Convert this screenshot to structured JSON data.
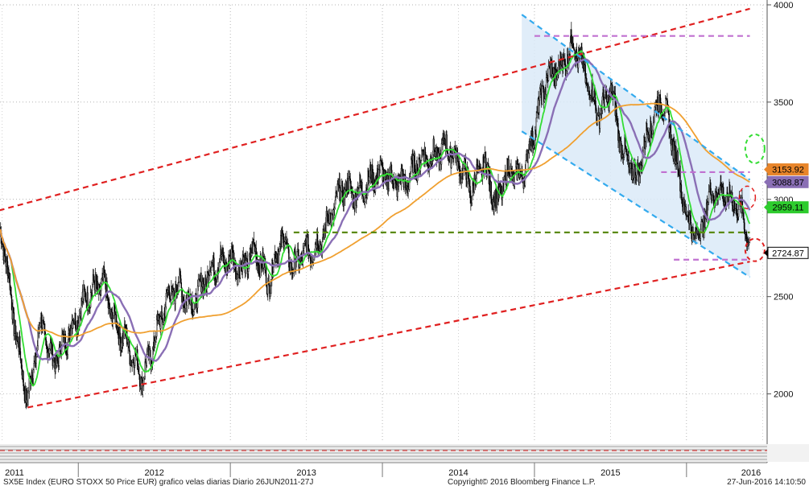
{
  "chart_data": {
    "type": "candlestick",
    "title": "SX5E Index (EURO STOXX 50 Price EUR) grafico velas diarias  Diario 26JUN2011-27J",
    "x_labels": [
      "2011",
      "2012",
      "2013",
      "2014",
      "2015",
      "2016"
    ],
    "y_ticks": [
      2000,
      2500,
      3000,
      3500,
      4000
    ],
    "ylim": [
      1750,
      4000
    ],
    "price_labels": [
      {
        "text": "3153.92",
        "value": 3153.92,
        "color": "#e8852a"
      },
      {
        "text": "3088.87",
        "value": 3088.87,
        "color": "#8a6fb5"
      },
      {
        "text": "2959.11",
        "value": 2959.11,
        "color": "#2ecc2e"
      },
      {
        "text": "2724.87",
        "value": 2724.87,
        "color": "#000000"
      }
    ],
    "price_path": [
      [
        "2011-06",
        2850
      ],
      [
        "2011-07",
        2780
      ],
      [
        "2011-08",
        2350
      ],
      [
        "2011-09",
        2000
      ],
      [
        "2011-10",
        2330
      ],
      [
        "2011-11",
        2150
      ],
      [
        "2011-12",
        2320
      ],
      [
        "2012-01",
        2400
      ],
      [
        "2012-02",
        2500
      ],
      [
        "2012-03",
        2600
      ],
      [
        "2012-04",
        2350
      ],
      [
        "2012-05",
        2200
      ],
      [
        "2012-06",
        2100
      ],
      [
        "2012-07",
        2300
      ],
      [
        "2012-08",
        2450
      ],
      [
        "2012-09",
        2550
      ],
      [
        "2012-10",
        2500
      ],
      [
        "2012-11",
        2560
      ],
      [
        "2012-12",
        2650
      ],
      [
        "2013-01",
        2730
      ],
      [
        "2013-02",
        2640
      ],
      [
        "2013-03",
        2700
      ],
      [
        "2013-04",
        2600
      ],
      [
        "2013-05",
        2820
      ],
      [
        "2013-06",
        2600
      ],
      [
        "2013-07",
        2750
      ],
      [
        "2013-08",
        2800
      ],
      [
        "2013-09",
        2900
      ],
      [
        "2013-10",
        3050
      ],
      [
        "2013-11",
        3070
      ],
      [
        "2013-12",
        3080
      ],
      [
        "2014-01",
        3100
      ],
      [
        "2014-02",
        3130
      ],
      [
        "2014-03",
        3100
      ],
      [
        "2014-04",
        3170
      ],
      [
        "2014-05",
        3240
      ],
      [
        "2014-06",
        3300
      ],
      [
        "2014-07",
        3150
      ],
      [
        "2014-08",
        3050
      ],
      [
        "2014-09",
        3230
      ],
      [
        "2014-10",
        2950
      ],
      [
        "2014-11",
        3130
      ],
      [
        "2014-12",
        3150
      ],
      [
        "2015-01",
        3350
      ],
      [
        "2015-02",
        3600
      ],
      [
        "2015-03",
        3700
      ],
      [
        "2015-04",
        3820
      ],
      [
        "2015-05",
        3600
      ],
      [
        "2015-06",
        3450
      ],
      [
        "2015-07",
        3600
      ],
      [
        "2015-08",
        3200
      ],
      [
        "2015-09",
        3100
      ],
      [
        "2015-10",
        3400
      ],
      [
        "2015-11",
        3500
      ],
      [
        "2015-12",
        3250
      ],
      [
        "2016-01",
        2950
      ],
      [
        "2016-02",
        2800
      ],
      [
        "2016-03",
        3000
      ],
      [
        "2016-04",
        3050
      ],
      [
        "2016-05",
        3000
      ],
      [
        "2016-06",
        2750
      ]
    ],
    "series": [
      {
        "name": "",
        "color": "#33dd33"
      },
      {
        "name": "",
        "color": "#8a6fb5"
      },
      {
        "name": "",
        "color": "#f0a030"
      }
    ],
    "trend_lines": [
      {
        "color": "#e02020",
        "points": [
          [
            "2011-06",
            2930
          ],
          [
            "2016-06",
            3980
          ]
        ]
      },
      {
        "color": "#e02020",
        "points": [
          [
            "2011-09",
            1930
          ],
          [
            "2016-06",
            2680
          ]
        ]
      },
      {
        "color": "#33aaee",
        "points": [
          [
            "2014-12",
            3950
          ],
          [
            "2016-06",
            3100
          ]
        ]
      },
      {
        "color": "#33aaee",
        "points": [
          [
            "2014-12",
            3350
          ],
          [
            "2016-06",
            2600
          ]
        ]
      },
      {
        "color": "#5a8a10",
        "points": [
          [
            "2013-06",
            2830
          ],
          [
            "2016-06",
            2830
          ]
        ]
      },
      {
        "color": "#c070d0",
        "points": [
          [
            "2015-01",
            3840
          ],
          [
            "2016-06",
            3840
          ]
        ]
      },
      {
        "color": "#c070d0",
        "points": [
          [
            "2015-11",
            3140
          ],
          [
            "2016-06",
            3140
          ]
        ]
      },
      {
        "color": "#c070d0",
        "points": [
          [
            "2015-12",
            2690
          ],
          [
            "2016-06",
            2690
          ]
        ]
      }
    ],
    "channel": {
      "color": "#dbeaf8",
      "points": [
        [
          "2014-12",
          3950
        ],
        [
          "2016-06",
          3100
        ],
        [
          "2016-06",
          2600
        ],
        [
          "2014-12",
          3350
        ]
      ]
    },
    "grid": true
  },
  "footer": {
    "left": "SX5E Index (EURO STOXX 50 Price EUR) grafico velas diarias  Diario 26JUN2011-27J",
    "center": "Copyright© 2016 Bloomberg Finance L.P.",
    "right": "27-Jun-2016 14:10:50"
  }
}
